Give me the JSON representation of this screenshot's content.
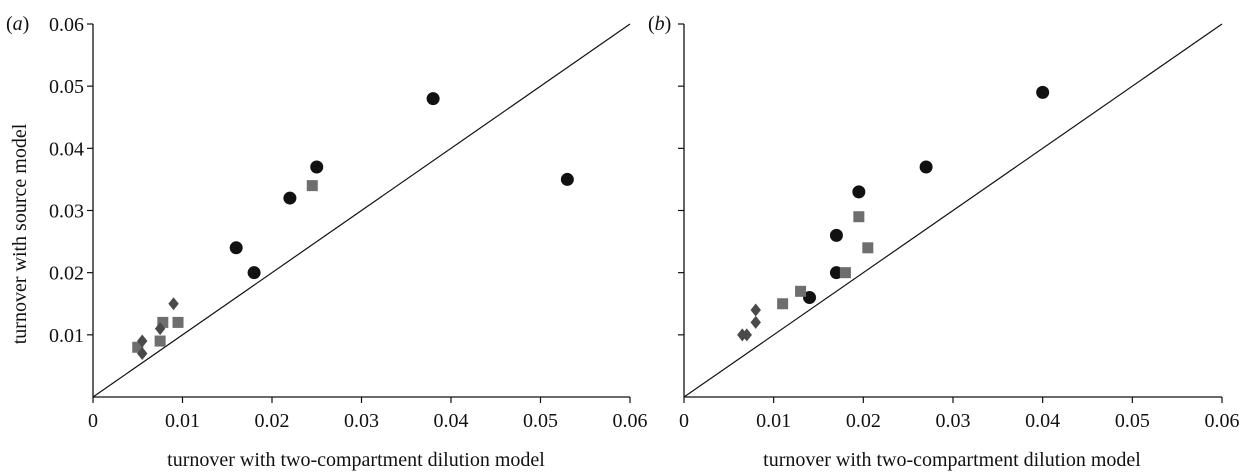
{
  "figure": {
    "panels": [
      {
        "tag": "a"
      },
      {
        "tag": "b"
      }
    ]
  },
  "colors": {
    "circle": "#111111",
    "square": "#6e6e6e",
    "diamond": "#4a4a4a",
    "axis": "#111111"
  },
  "chart_data": [
    {
      "type": "scatter",
      "panel": "(a)",
      "title": "",
      "xlabel": "turnover with two-compartment dilution model",
      "ylabel": "turnover with source model",
      "xlim": [
        0,
        0.06
      ],
      "ylim": [
        0,
        0.06
      ],
      "x_ticks": [
        0,
        0.01,
        0.02,
        0.03,
        0.04,
        0.05,
        0.06
      ],
      "x_tick_labels": [
        "0",
        "0.01",
        "0.02",
        "0.03",
        "0.04",
        "0.05",
        "0.06"
      ],
      "y_ticks": [
        0.01,
        0.02,
        0.03,
        0.04,
        0.05,
        0.06
      ],
      "y_tick_labels": [
        "0.01",
        "0.02",
        "0.03",
        "0.04",
        "0.05",
        "0.06"
      ],
      "reference_line": "y = x",
      "series": [
        {
          "marker": "circle",
          "color": "#111111",
          "points": [
            [
              0.016,
              0.024
            ],
            [
              0.018,
              0.02
            ],
            [
              0.022,
              0.032
            ],
            [
              0.025,
              0.037
            ],
            [
              0.038,
              0.048
            ],
            [
              0.053,
              0.035
            ]
          ]
        },
        {
          "marker": "square",
          "color": "#6e6e6e",
          "points": [
            [
              0.005,
              0.008
            ],
            [
              0.0075,
              0.009
            ],
            [
              0.0078,
              0.012
            ],
            [
              0.0095,
              0.012
            ],
            [
              0.0245,
              0.034
            ]
          ]
        },
        {
          "marker": "diamond",
          "color": "#4a4a4a",
          "points": [
            [
              0.0055,
              0.009
            ],
            [
              0.0055,
              0.007
            ],
            [
              0.0075,
              0.011
            ],
            [
              0.009,
              0.015
            ]
          ]
        }
      ]
    },
    {
      "type": "scatter",
      "panel": "(b)",
      "title": "",
      "xlabel": "turnover with two-compartment dilution model",
      "ylabel": "",
      "xlim": [
        0,
        0.06
      ],
      "ylim": [
        0,
        0.06
      ],
      "x_ticks": [
        0,
        0.01,
        0.02,
        0.03,
        0.04,
        0.05,
        0.06
      ],
      "x_tick_labels": [
        "0",
        "0.01",
        "0.02",
        "0.03",
        "0.04",
        "0.05",
        "0.06"
      ],
      "y_ticks": [
        0.01,
        0.02,
        0.03,
        0.04,
        0.05,
        0.06
      ],
      "y_tick_labels": [],
      "reference_line": "y = x",
      "series": [
        {
          "marker": "circle",
          "color": "#111111",
          "points": [
            [
              0.014,
              0.016
            ],
            [
              0.017,
              0.026
            ],
            [
              0.017,
              0.02
            ],
            [
              0.0195,
              0.033
            ],
            [
              0.027,
              0.037
            ],
            [
              0.04,
              0.049
            ]
          ]
        },
        {
          "marker": "square",
          "color": "#6e6e6e",
          "points": [
            [
              0.011,
              0.015
            ],
            [
              0.013,
              0.017
            ],
            [
              0.018,
              0.02
            ],
            [
              0.0195,
              0.029
            ],
            [
              0.0205,
              0.024
            ]
          ]
        },
        {
          "marker": "diamond",
          "color": "#4a4a4a",
          "points": [
            [
              0.0065,
              0.01
            ],
            [
              0.007,
              0.01
            ],
            [
              0.008,
              0.014
            ],
            [
              0.008,
              0.012
            ]
          ]
        }
      ]
    }
  ]
}
